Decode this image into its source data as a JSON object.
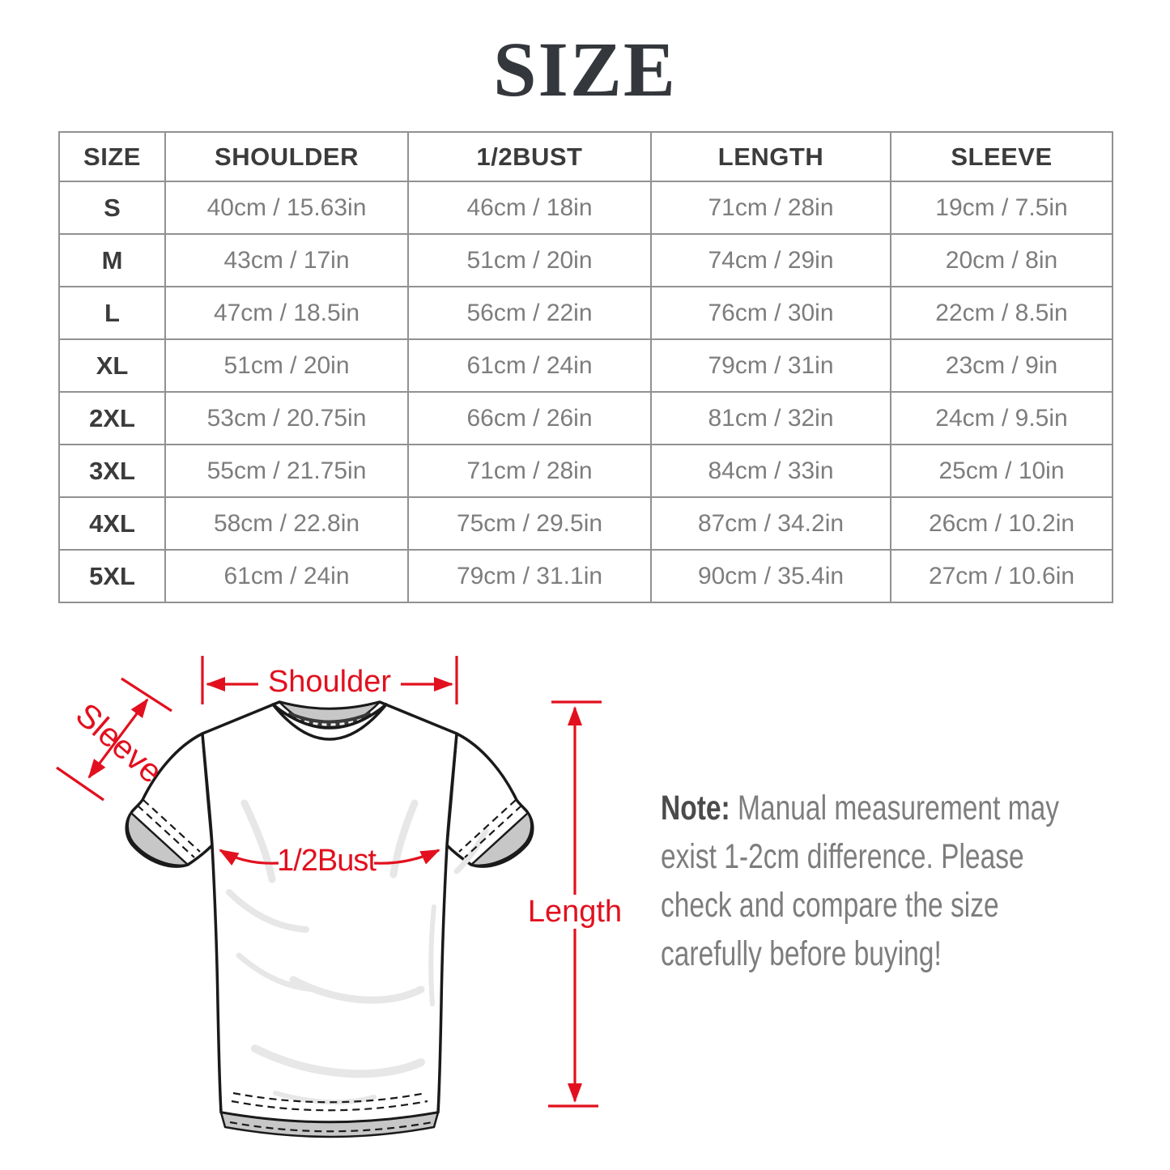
{
  "title": "SIZE",
  "table": {
    "headers": [
      "SIZE",
      "SHOULDER",
      "1/2BUST",
      "LENGTH",
      "SLEEVE"
    ],
    "rows": [
      [
        "S",
        "40cm / 15.63in",
        "46cm / 18in",
        "71cm / 28in",
        "19cm / 7.5in"
      ],
      [
        "M",
        "43cm / 17in",
        "51cm / 20in",
        "74cm / 29in",
        "20cm / 8in"
      ],
      [
        "L",
        "47cm / 18.5in",
        "56cm / 22in",
        "76cm / 30in",
        "22cm / 8.5in"
      ],
      [
        "XL",
        "51cm / 20in",
        "61cm / 24in",
        "79cm / 31in",
        "23cm / 9in"
      ],
      [
        "2XL",
        "53cm / 20.75in",
        "66cm / 26in",
        "81cm / 32in",
        "24cm / 9.5in"
      ],
      [
        "3XL",
        "55cm / 21.75in",
        "71cm / 28in",
        "84cm / 33in",
        "25cm / 10in"
      ],
      [
        "4XL",
        "58cm / 22.8in",
        "75cm / 29.5in",
        "87cm / 34.2in",
        "26cm / 10.2in"
      ],
      [
        "5XL",
        "61cm / 24in",
        "79cm / 31.1in",
        "90cm / 35.4in",
        "27cm / 10.6in"
      ]
    ]
  },
  "diagram": {
    "accent_color": "#e2101e",
    "labels": {
      "shoulder": "Shoulder",
      "sleeve": "Sleeve",
      "half_bust": "1/2Bust",
      "length": "Length"
    }
  },
  "note": {
    "prefix": "Note:",
    "lines": [
      "Manual measurement may",
      "exist 1-2cm difference. Please",
      "check and compare the size",
      "carefully before buying!"
    ]
  }
}
